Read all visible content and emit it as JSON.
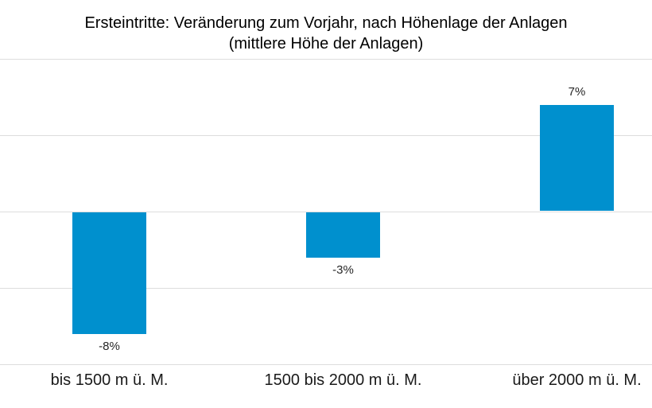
{
  "title": {
    "line1": "Ersteintritte: Veränderung zum Vorjahr, nach Höhenlage der Anlagen",
    "line2": "(mittlere Höhe der Anlagen)"
  },
  "chart_data": {
    "type": "bar",
    "title": "Ersteintritte: Veränderung zum Vorjahr, nach Höhenlage der Anlagen (mittlere Höhe der Anlagen)",
    "categories": [
      "bis 1500 m ü. M.",
      "1500 bis 2000 m ü. M.",
      "über 2000 m ü. M."
    ],
    "values": [
      -8,
      -3,
      7
    ],
    "value_labels": [
      "-8%",
      "-3%",
      "7%"
    ],
    "unit": "%",
    "xlabel": "",
    "ylabel": "",
    "ylim": [
      -10,
      10
    ],
    "gridline_values": [
      10,
      5,
      0,
      -5,
      -10
    ],
    "grid": true,
    "legend": null,
    "y_axis_tick_labels_visible": false,
    "colors": {
      "bar": "#0090CE",
      "grid": "#DDDDDD",
      "title": "#000000",
      "value_label": "#262626",
      "category_label": "#1A1A1A",
      "background": "#FFFFFF"
    }
  }
}
